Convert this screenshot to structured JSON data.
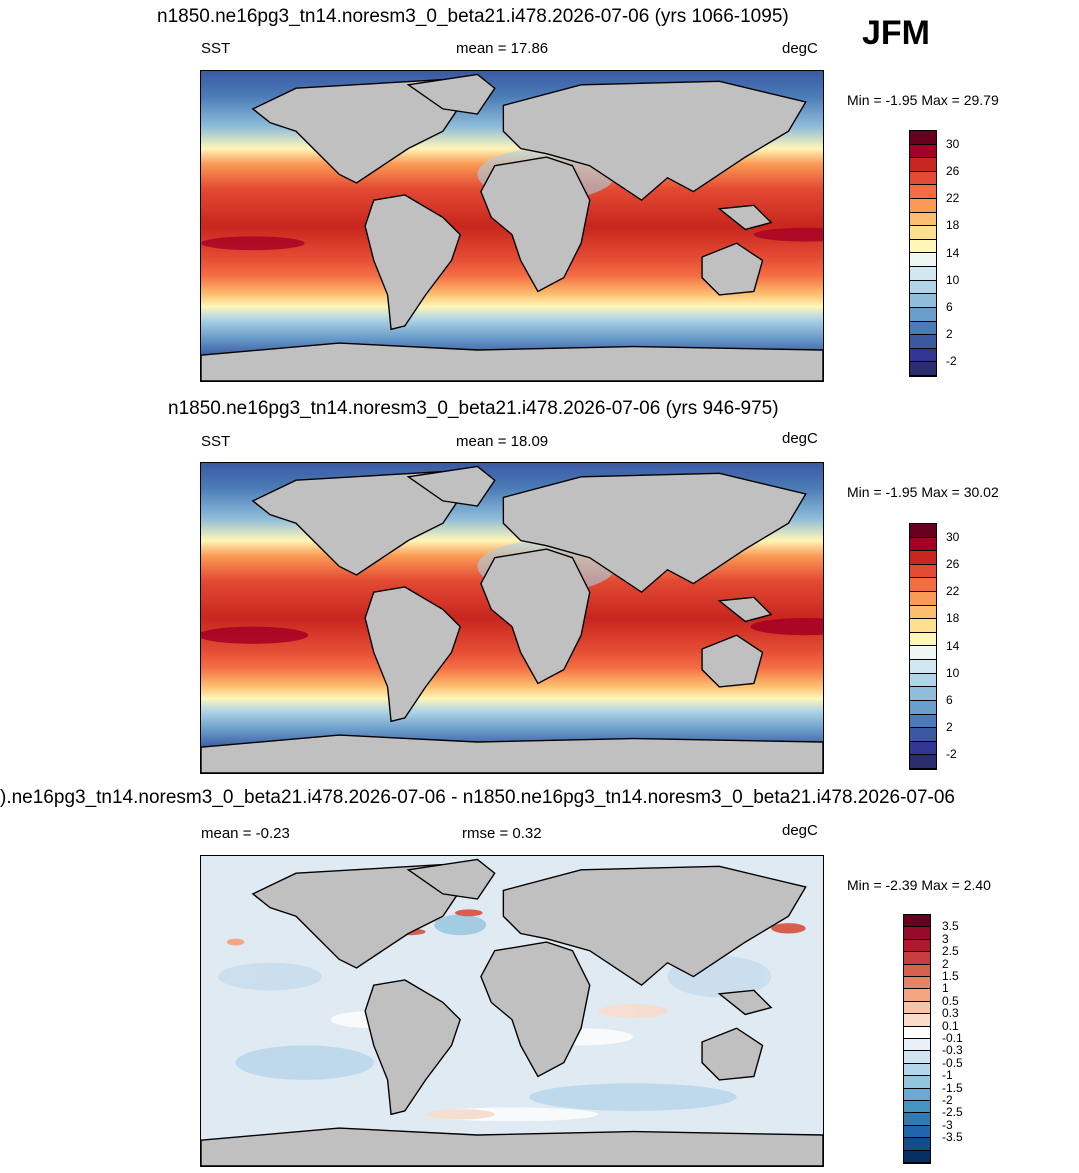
{
  "season": "JFM",
  "panels": [
    {
      "title": "n1850.ne16pg3_tn14.noresm3_0_beta21.i478.2026-07-06 (yrs 1066-1095)",
      "left_label": "SST",
      "center_label": "mean =  17.86",
      "units": "degC",
      "minmax": "Min =  -1.95 Max =  29.79",
      "mean": 17.86,
      "min": -1.95,
      "max": 29.79
    },
    {
      "title": "n1850.ne16pg3_tn14.noresm3_0_beta21.i478.2026-07-06 (yrs 946-975)",
      "left_label": "SST",
      "center_label": "mean =  18.09",
      "units": "degC",
      "minmax": "Min =  -1.95 Max =  30.02",
      "mean": 18.09,
      "min": -1.95,
      "max": 30.02
    },
    {
      "title": ").ne16pg3_tn14.noresm3_0_beta21.i478.2026-07-06 - n1850.ne16pg3_tn14.noresm3_0_beta21.i478.2026-07-06",
      "left_label": "mean =  -0.23",
      "center_label": "rmse =   0.32",
      "units": "degC",
      "minmax": "Min =  -2.39 Max =   2.40",
      "mean": -0.23,
      "rmse": 0.32,
      "min": -2.39,
      "max": 2.4
    }
  ],
  "sst_colorbar": {
    "ticks": [
      "30",
      "26",
      "22",
      "18",
      "14",
      "10",
      "6",
      "2",
      "-2"
    ],
    "colors": [
      "#67001f",
      "#a50026",
      "#c8261e",
      "#e34a33",
      "#f46d43",
      "#fb9a55",
      "#fdbf6f",
      "#fee090",
      "#fff6b8",
      "#eef7f3",
      "#d1e8f1",
      "#b0d5e8",
      "#8fbdda",
      "#6a9dca",
      "#4a7bb7",
      "#3b59a3",
      "#313695",
      "#2b2d6e"
    ]
  },
  "diff_colorbar": {
    "ticks": [
      "3.5",
      "3",
      "2.5",
      "2",
      "1.5",
      "1",
      "0.5",
      "0.3",
      "0.1",
      "-0.1",
      "-0.3",
      "-0.5",
      "-1",
      "-1.5",
      "-2",
      "-2.5",
      "-3",
      "-3.5"
    ],
    "colors": [
      "#67001f",
      "#970a2b",
      "#b2182b",
      "#c73d3f",
      "#d6604d",
      "#e48366",
      "#f4a582",
      "#f8c4a8",
      "#fbdcc8",
      "#ffffff",
      "#e8f1f7",
      "#d1e5f0",
      "#b5d5ea",
      "#92c5de",
      "#6aaad2",
      "#4393c3",
      "#2f79b5",
      "#2166ac",
      "#124d8a",
      "#053061"
    ]
  }
}
